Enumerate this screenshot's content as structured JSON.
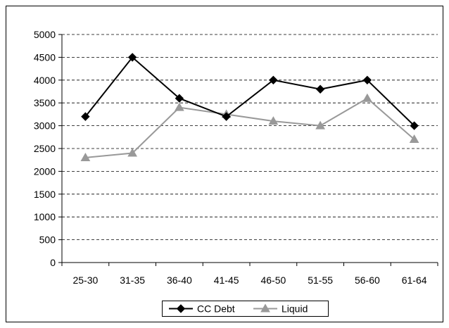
{
  "chart_data": {
    "type": "line",
    "title": "",
    "xlabel": "",
    "ylabel": "",
    "categories": [
      "25-30",
      "31-35",
      "36-40",
      "41-45",
      "46-50",
      "51-55",
      "56-60",
      "61-64"
    ],
    "ylim": [
      0,
      5000
    ],
    "yticks": [
      0,
      500,
      1000,
      1500,
      2000,
      2500,
      3000,
      3500,
      4000,
      4500,
      5000
    ],
    "grid": "horizontal-dashed",
    "legend_position": "bottom",
    "series": [
      {
        "name": "CC Debt",
        "color": "#000000",
        "marker": "diamond",
        "values": [
          3200,
          4500,
          3600,
          3200,
          4000,
          3800,
          4000,
          3000
        ]
      },
      {
        "name": "Liquid",
        "color": "#999999",
        "marker": "triangle",
        "values": [
          2300,
          2400,
          3400,
          3250,
          3100,
          3000,
          3600,
          2700
        ]
      }
    ]
  }
}
